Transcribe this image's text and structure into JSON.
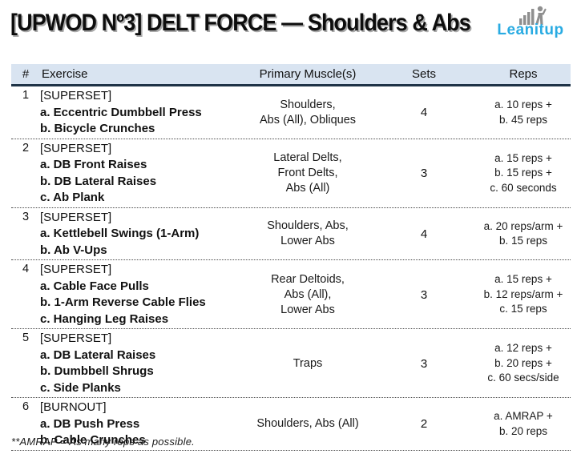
{
  "title": "[UPWOD Nº3] DELT FORCE — Shoulders & Abs",
  "logo": {
    "text": "Leanitup",
    "icon": "bar-chart-person-icon"
  },
  "table": {
    "headers": {
      "num": "#",
      "exercise": "Exercise",
      "muscles": "Primary Muscle(s)",
      "sets": "Sets",
      "reps": "Reps"
    },
    "rows": [
      {
        "num": "1",
        "tag": "[SUPERSET]",
        "exercises": [
          "a. Eccentric Dumbbell Press",
          "b. Bicycle Crunches"
        ],
        "muscles": [
          "Shoulders,",
          "Abs (All), Obliques"
        ],
        "sets": "4",
        "reps": [
          "a. 10 reps +",
          "b. 45 reps"
        ]
      },
      {
        "num": "2",
        "tag": "[SUPERSET]",
        "exercises": [
          "a. DB Front Raises",
          "b. DB Lateral Raises",
          "c. Ab Plank"
        ],
        "muscles": [
          "Lateral Delts,",
          "Front Delts,",
          "Abs (All)"
        ],
        "sets": "3",
        "reps": [
          "a. 15 reps +",
          "b. 15 reps +",
          "c. 60 seconds"
        ]
      },
      {
        "num": "3",
        "tag": "[SUPERSET]",
        "exercises": [
          "a. Kettlebell Swings (1-Arm)",
          "b. Ab V-Ups"
        ],
        "muscles": [
          "Shoulders, Abs,",
          "Lower Abs"
        ],
        "sets": "4",
        "reps": [
          "a. 20 reps/arm +",
          "b. 15 reps"
        ]
      },
      {
        "num": "4",
        "tag": "[SUPERSET]",
        "exercises": [
          "a. Cable Face Pulls",
          "b. 1-Arm Reverse Cable Flies",
          "c. Hanging Leg Raises"
        ],
        "muscles": [
          "Rear Deltoids,",
          "Abs (All),",
          "Lower Abs"
        ],
        "sets": "3",
        "reps": [
          "a. 15 reps +",
          "b. 12 reps/arm +",
          "c. 15 reps"
        ]
      },
      {
        "num": "5",
        "tag": "[SUPERSET]",
        "exercises": [
          "a. DB Lateral Raises",
          "b. Dumbbell Shrugs",
          "c. Side Planks"
        ],
        "muscles": [
          "Traps"
        ],
        "sets": "3",
        "reps": [
          "a. 12 reps +",
          "b. 20 reps +",
          "c. 60 secs/side"
        ]
      },
      {
        "num": "6",
        "tag": "[BURNOUT]",
        "exercises": [
          "a. DB Push Press",
          "b. Cable Crunches"
        ],
        "muscles": [
          "Shoulders, Abs (All)"
        ],
        "sets": "2",
        "reps": [
          "a. AMRAP +",
          "b. 20 reps"
        ]
      }
    ]
  },
  "footnote": "**AMRAP = As many reps as possible.",
  "colors": {
    "accent_blue": "#29abe2",
    "icon_gray": "#8f8f8f",
    "header_bg": "#d9e4f1",
    "header_border": "#1f3347"
  }
}
